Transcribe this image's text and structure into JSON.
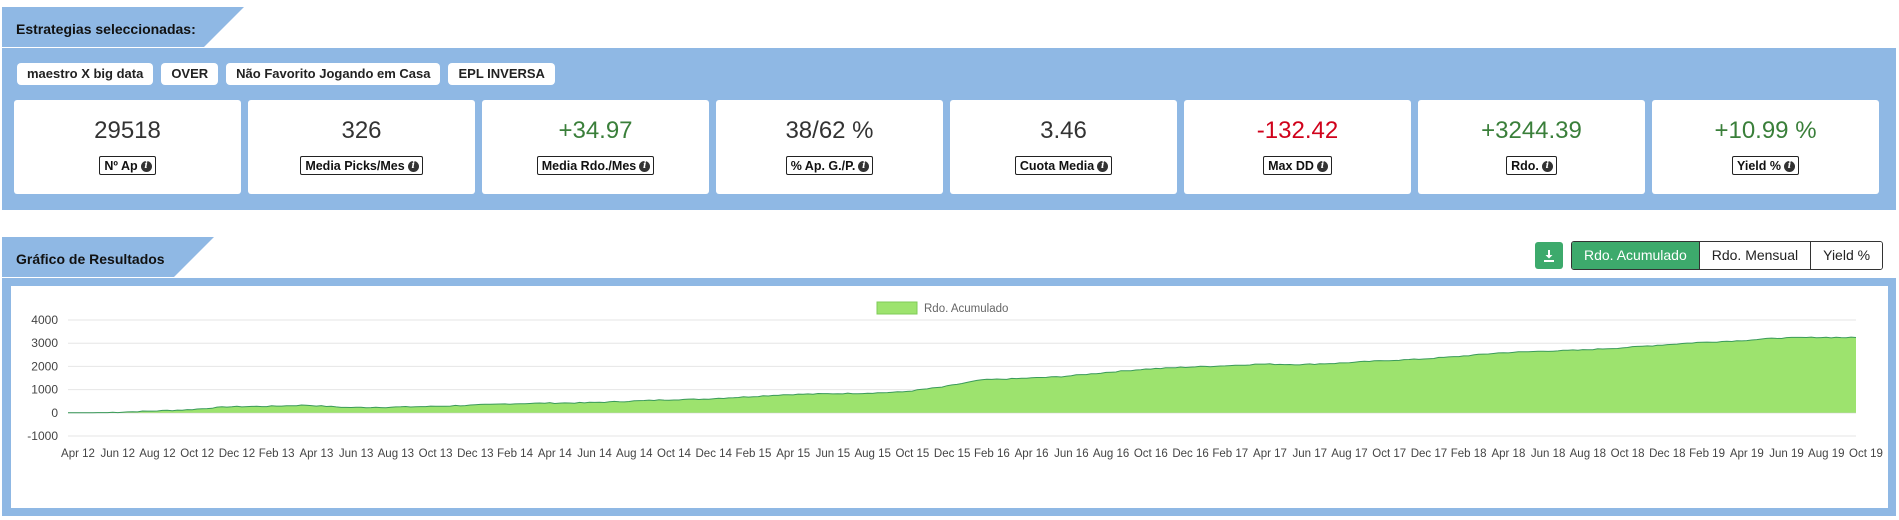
{
  "strategies": {
    "title": "Estrategias seleccionadas:",
    "chips": [
      "maestro X big data",
      "OVER",
      "Não Favorito Jogando em Casa",
      "EPL INVERSA"
    ]
  },
  "stats": [
    {
      "value": "29518",
      "label": "Nº Ap",
      "tone": "neutral"
    },
    {
      "value": "326",
      "label": "Media Picks/Mes",
      "tone": "neutral"
    },
    {
      "value": "+34.97",
      "label": "Media Rdo./Mes",
      "tone": "pos"
    },
    {
      "value": "38/62 %",
      "label": "% Ap. G./P.",
      "tone": "neutral"
    },
    {
      "value": "3.46",
      "label": "Cuota Media",
      "tone": "neutral"
    },
    {
      "value": "-132.42",
      "label": "Max DD",
      "tone": "neg"
    },
    {
      "value": "+3244.39",
      "label": "Rdo.",
      "tone": "pos"
    },
    {
      "value": "+10.99 %",
      "label": "Yield %",
      "tone": "pos"
    }
  ],
  "chart_section": {
    "title": "Gráfico de Resultados",
    "download_icon": "download-icon",
    "toggles": [
      {
        "label": "Rdo. Acumulado",
        "active": true
      },
      {
        "label": "Rdo. Mensual",
        "active": false
      },
      {
        "label": "Yield %",
        "active": false
      }
    ]
  },
  "colors": {
    "panel": "#8fb8e4",
    "accent_green": "#3daa6c",
    "area_fill": "#9de36e",
    "area_line": "#3a9a5a",
    "positive": "#3a7f3a",
    "negative": "#d0021b"
  },
  "chart_data": {
    "type": "area",
    "legend": "top-center",
    "grid": true,
    "ylim": [
      -1000,
      4000
    ],
    "yticks": [
      4000,
      3000,
      2000,
      1000,
      0,
      -1000
    ],
    "x_tick_labels": [
      "Apr 12",
      "Jun 12",
      "Aug 12",
      "Oct 12",
      "Dec 12",
      "Feb 13",
      "Apr 13",
      "Jun 13",
      "Aug 13",
      "Oct 13",
      "Dec 13",
      "Feb 14",
      "Apr 14",
      "Jun 14",
      "Aug 14",
      "Oct 14",
      "Dec 14",
      "Feb 15",
      "Apr 15",
      "Jun 15",
      "Aug 15",
      "Oct 15",
      "Dec 15",
      "Feb 16",
      "Apr 16",
      "Jun 16",
      "Aug 16",
      "Oct 16",
      "Dec 16",
      "Feb 17",
      "Apr 17",
      "Jun 17",
      "Aug 17",
      "Oct 17",
      "Dec 17",
      "Feb 18",
      "Apr 18",
      "Jun 18",
      "Aug 18",
      "Oct 18",
      "Dec 18",
      "Feb 19",
      "Apr 19",
      "Jun 19",
      "Aug 19",
      "Oct 19"
    ],
    "series": [
      {
        "name": "Rdo. Acumulado",
        "values": [
          0,
          10,
          70,
          130,
          260,
          280,
          330,
          230,
          240,
          270,
          320,
          380,
          420,
          430,
          490,
          560,
          590,
          680,
          780,
          820,
          840,
          900,
          1110,
          1420,
          1480,
          1560,
          1720,
          1870,
          1960,
          2020,
          2100,
          2080,
          2140,
          2240,
          2310,
          2430,
          2580,
          2650,
          2700,
          2790,
          2910,
          3030,
          3100,
          3220,
          3250,
          3244
        ]
      }
    ]
  }
}
